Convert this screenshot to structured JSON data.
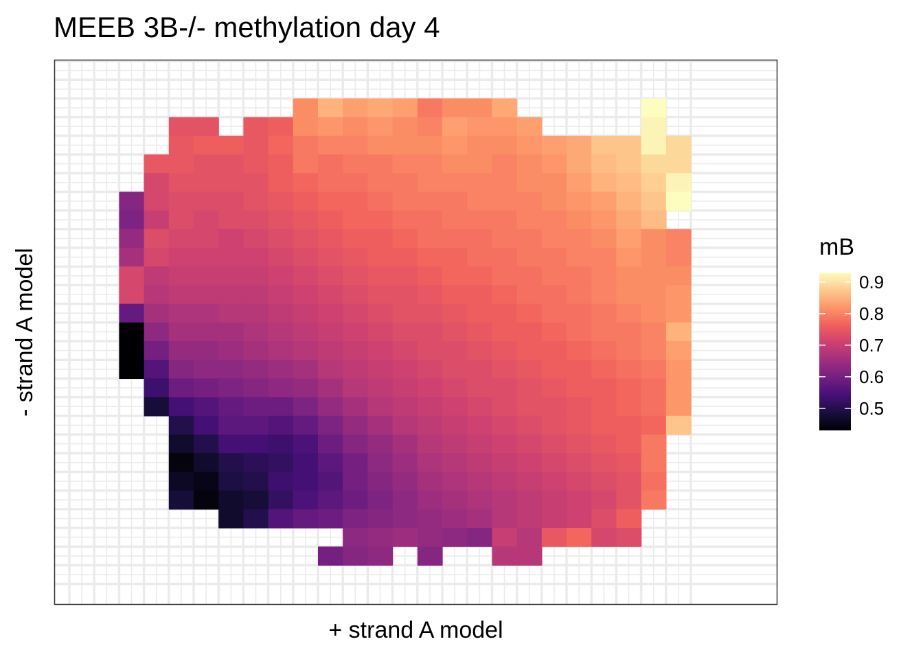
{
  "chart_data": {
    "type": "heatmap",
    "title": "MEEB 3B-/- methylation day 4",
    "xlabel": "+ strand A model",
    "ylabel": "- strand A model",
    "grid": true,
    "legend": {
      "title": "mB",
      "placement": "right",
      "ticks": [
        0.5,
        0.6,
        0.7,
        0.8,
        0.9
      ],
      "tick_labels": [
        "0.5",
        "0.6",
        "0.7",
        "0.8",
        "0.9"
      ],
      "range": [
        0.43,
        0.93
      ]
    },
    "palette": [
      "#000004",
      "#180f3e",
      "#451077",
      "#721f81",
      "#9f2f7f",
      "#cd4071",
      "#f1605d",
      "#fd9567",
      "#fec98d",
      "#fcfdbf"
    ],
    "n_cols": 25,
    "n_rows": 28,
    "rows": [
      [
        null,
        null,
        null,
        null,
        null,
        null,
        null,
        null,
        null,
        null,
        null,
        null,
        null,
        null,
        null,
        null,
        null,
        null,
        null,
        null,
        null,
        null,
        null,
        null,
        null
      ],
      [
        null,
        null,
        null,
        null,
        null,
        null,
        null,
        null,
        null,
        null,
        null,
        null,
        null,
        null,
        null,
        null,
        null,
        null,
        null,
        null,
        null,
        null,
        null,
        null,
        null
      ],
      [
        null,
        null,
        null,
        null,
        null,
        null,
        null,
        null,
        null,
        0.81,
        0.85,
        0.83,
        0.84,
        0.83,
        0.79,
        0.81,
        0.81,
        0.84,
        null,
        null,
        null,
        null,
        null,
        0.93,
        null
      ],
      [
        null,
        null,
        null,
        null,
        0.74,
        0.74,
        null,
        0.75,
        0.76,
        0.81,
        0.82,
        0.81,
        0.82,
        0.81,
        0.8,
        0.83,
        0.82,
        0.82,
        0.83,
        null,
        null,
        null,
        null,
        0.92,
        null
      ],
      [
        null,
        null,
        null,
        null,
        0.75,
        0.76,
        0.76,
        0.75,
        0.77,
        0.79,
        0.8,
        0.8,
        0.81,
        0.81,
        0.81,
        0.82,
        0.81,
        0.81,
        0.82,
        0.83,
        0.84,
        0.87,
        0.87,
        0.92,
        0.89
      ],
      [
        null,
        null,
        null,
        0.75,
        0.75,
        0.74,
        0.74,
        0.75,
        0.76,
        0.79,
        0.78,
        0.79,
        0.79,
        0.8,
        0.8,
        0.81,
        0.81,
        0.8,
        0.81,
        0.82,
        0.84,
        0.86,
        0.87,
        0.89,
        0.89
      ],
      [
        null,
        null,
        null,
        0.72,
        0.74,
        0.74,
        0.74,
        0.74,
        0.76,
        0.77,
        0.78,
        0.78,
        0.79,
        0.79,
        0.8,
        0.8,
        0.8,
        0.8,
        0.81,
        0.81,
        0.83,
        0.85,
        0.86,
        0.88,
        0.92
      ],
      [
        null,
        null,
        0.62,
        0.72,
        0.73,
        0.73,
        0.73,
        0.74,
        0.75,
        0.76,
        0.77,
        0.77,
        0.78,
        0.79,
        0.79,
        0.79,
        0.8,
        0.8,
        0.8,
        0.81,
        0.82,
        0.83,
        0.85,
        0.87,
        0.93
      ],
      [
        null,
        null,
        0.61,
        0.7,
        0.73,
        0.72,
        0.73,
        0.73,
        0.74,
        0.75,
        0.76,
        0.77,
        0.77,
        0.78,
        0.78,
        0.79,
        0.79,
        0.79,
        0.8,
        0.8,
        0.81,
        0.82,
        0.84,
        0.86,
        null
      ],
      [
        null,
        null,
        0.64,
        0.73,
        0.72,
        0.72,
        0.71,
        0.72,
        0.73,
        0.74,
        0.75,
        0.76,
        0.76,
        0.77,
        0.78,
        0.78,
        0.78,
        0.79,
        0.79,
        0.8,
        0.8,
        0.81,
        0.83,
        0.81,
        0.8
      ],
      [
        null,
        null,
        0.66,
        0.72,
        0.71,
        0.71,
        0.71,
        0.71,
        0.72,
        0.73,
        0.74,
        0.75,
        0.76,
        0.76,
        0.77,
        0.77,
        0.78,
        0.78,
        0.79,
        0.79,
        0.8,
        0.8,
        0.82,
        0.81,
        0.8
      ],
      [
        null,
        null,
        0.72,
        0.69,
        0.7,
        0.7,
        0.7,
        0.7,
        0.71,
        0.72,
        0.73,
        0.74,
        0.75,
        0.75,
        0.76,
        0.77,
        0.77,
        0.78,
        0.78,
        0.79,
        0.79,
        0.8,
        0.81,
        0.81,
        0.81
      ],
      [
        null,
        null,
        0.72,
        0.68,
        0.69,
        0.69,
        0.69,
        0.69,
        0.7,
        0.71,
        0.72,
        0.73,
        0.74,
        0.74,
        0.75,
        0.76,
        0.76,
        0.77,
        0.78,
        0.78,
        0.79,
        0.8,
        0.81,
        0.81,
        0.82
      ],
      [
        null,
        null,
        0.58,
        0.66,
        0.67,
        0.67,
        0.68,
        0.68,
        0.69,
        0.7,
        0.71,
        0.72,
        0.73,
        0.74,
        0.74,
        0.75,
        0.76,
        0.76,
        0.77,
        0.78,
        0.78,
        0.79,
        0.8,
        0.81,
        0.82
      ],
      [
        null,
        null,
        0.43,
        0.63,
        0.66,
        0.66,
        0.66,
        0.67,
        0.68,
        0.69,
        0.7,
        0.71,
        0.72,
        0.73,
        0.73,
        0.74,
        0.75,
        0.76,
        0.76,
        0.77,
        0.78,
        0.79,
        0.79,
        0.8,
        0.85
      ],
      [
        null,
        null,
        0.43,
        0.6,
        0.64,
        0.64,
        0.65,
        0.66,
        0.67,
        0.68,
        0.69,
        0.7,
        0.71,
        0.72,
        0.73,
        0.73,
        0.74,
        0.75,
        0.76,
        0.76,
        0.77,
        0.78,
        0.79,
        0.8,
        0.83
      ],
      [
        null,
        null,
        0.43,
        0.56,
        0.62,
        0.63,
        0.63,
        0.64,
        0.65,
        0.66,
        0.68,
        0.69,
        0.7,
        0.71,
        0.72,
        0.73,
        0.73,
        0.74,
        0.75,
        0.76,
        0.76,
        0.77,
        0.78,
        0.79,
        0.82
      ],
      [
        null,
        null,
        null,
        0.53,
        0.59,
        0.6,
        0.61,
        0.62,
        0.63,
        0.64,
        0.66,
        0.68,
        0.69,
        0.7,
        0.71,
        0.72,
        0.73,
        0.73,
        0.74,
        0.75,
        0.76,
        0.76,
        0.77,
        0.78,
        0.82
      ],
      [
        null,
        null,
        null,
        0.48,
        0.54,
        0.56,
        0.58,
        0.59,
        0.59,
        0.61,
        0.64,
        0.66,
        0.68,
        0.69,
        0.7,
        0.71,
        0.72,
        0.73,
        0.74,
        0.74,
        0.75,
        0.76,
        0.77,
        0.78,
        0.82
      ],
      [
        null,
        null,
        null,
        null,
        0.5,
        0.54,
        0.57,
        0.57,
        0.56,
        0.58,
        0.61,
        0.64,
        0.66,
        0.68,
        0.69,
        0.7,
        0.71,
        0.72,
        0.73,
        0.74,
        0.75,
        0.76,
        0.76,
        0.77,
        0.87
      ],
      [
        null,
        null,
        null,
        null,
        0.47,
        0.5,
        0.54,
        0.54,
        0.53,
        0.55,
        0.59,
        0.62,
        0.64,
        0.66,
        0.68,
        0.69,
        0.7,
        0.71,
        0.72,
        0.73,
        0.74,
        0.75,
        0.76,
        0.79,
        null
      ],
      [
        null,
        null,
        null,
        null,
        0.44,
        0.47,
        0.5,
        0.51,
        0.52,
        0.54,
        0.57,
        0.6,
        0.63,
        0.65,
        0.67,
        0.68,
        0.69,
        0.7,
        0.71,
        0.72,
        0.73,
        0.74,
        0.75,
        0.79,
        null
      ],
      [
        null,
        null,
        null,
        null,
        0.46,
        0.45,
        0.49,
        0.5,
        0.53,
        0.54,
        0.56,
        0.6,
        0.62,
        0.64,
        0.66,
        0.67,
        0.68,
        0.69,
        0.7,
        0.71,
        0.72,
        0.73,
        0.74,
        0.78,
        null
      ],
      [
        null,
        null,
        null,
        null,
        0.48,
        0.44,
        0.47,
        0.48,
        0.52,
        0.55,
        0.57,
        0.59,
        0.61,
        0.63,
        0.65,
        0.66,
        0.67,
        0.68,
        0.69,
        0.7,
        0.71,
        0.72,
        0.74,
        0.79,
        null
      ],
      [
        null,
        null,
        null,
        null,
        null,
        null,
        0.47,
        0.5,
        0.56,
        0.58,
        0.59,
        0.61,
        0.62,
        0.63,
        0.64,
        0.65,
        0.66,
        0.68,
        0.69,
        0.7,
        0.71,
        0.73,
        0.76,
        null,
        null
      ],
      [
        null,
        null,
        null,
        null,
        null,
        null,
        null,
        null,
        null,
        null,
        null,
        0.63,
        0.64,
        0.65,
        0.64,
        0.63,
        0.62,
        0.7,
        0.68,
        0.75,
        0.77,
        0.72,
        0.73,
        null,
        null
      ],
      [
        null,
        null,
        null,
        null,
        null,
        null,
        null,
        null,
        null,
        null,
        0.6,
        0.62,
        0.63,
        null,
        0.62,
        null,
        null,
        0.68,
        0.68,
        null,
        null,
        null,
        null,
        null,
        null
      ],
      [
        null,
        null,
        null,
        null,
        null,
        null,
        null,
        null,
        null,
        null,
        null,
        null,
        null,
        null,
        null,
        null,
        null,
        null,
        null,
        null,
        null,
        null,
        null,
        null,
        null
      ]
    ]
  }
}
